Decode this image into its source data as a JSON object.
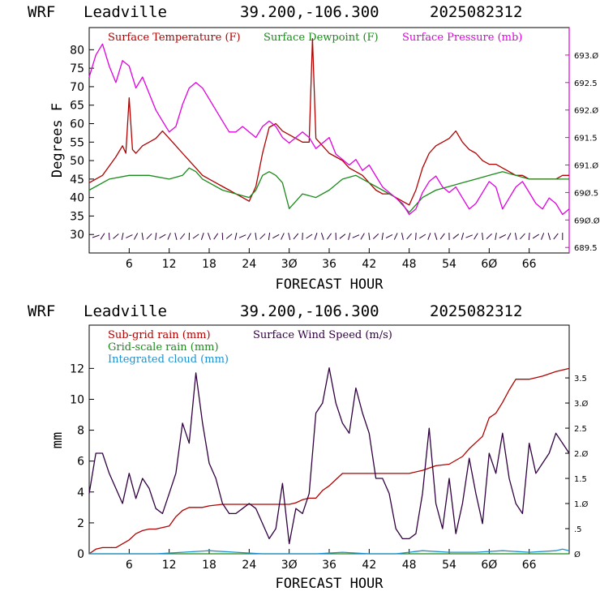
{
  "chart_data": [
    {
      "type": "line",
      "header": {
        "model": "WRF",
        "station": "Leadville",
        "coords": "39.200,-106.300",
        "run": "2025082312"
      },
      "xlabel": "FORECAST HOUR",
      "ylabel": "Degrees F",
      "xlim": [
        0,
        72
      ],
      "xticks": [
        6,
        12,
        18,
        24,
        30,
        36,
        42,
        48,
        54,
        60,
        66
      ],
      "xtick_labels": [
        "6",
        "12",
        "18",
        "24",
        "3Ø",
        "36",
        "42",
        "48",
        "54",
        "6Ø",
        "66"
      ],
      "ylim": [
        25,
        86
      ],
      "yticks": [
        30,
        35,
        40,
        45,
        50,
        55,
        60,
        65,
        70,
        75,
        80
      ],
      "y2lim": [
        689.4,
        693.5
      ],
      "y2ticks": [
        689.5,
        690.0,
        690.5,
        691.0,
        691.5,
        692.0,
        692.5,
        693.0
      ],
      "y2tick_labels": [
        "689.5",
        "69Ø.Ø",
        "69Ø.5",
        "691.Ø",
        "691.5",
        "692.Ø",
        "692.5",
        "693.Ø"
      ],
      "colors": {
        "temperature": "#b00000",
        "dewpoint": "#1a8a1a",
        "pressure": "#e000e0"
      },
      "series": [
        {
          "name": "Surface Temperature (F)",
          "color": "#b00000",
          "axis": "left",
          "x": [
            0,
            2,
            4,
            5,
            5.5,
            6,
            6.5,
            7,
            8,
            9,
            10,
            11,
            12,
            13,
            14,
            15,
            16,
            17,
            18,
            19,
            20,
            21,
            22,
            23,
            24,
            25,
            26,
            27,
            28,
            29,
            30,
            31,
            32,
            33,
            33.5,
            34,
            35,
            36,
            37,
            38,
            39,
            40,
            41,
            42,
            43,
            44,
            45,
            46,
            47,
            48,
            49,
            50,
            51,
            52,
            53,
            54,
            55,
            56,
            57,
            58,
            59,
            60,
            61,
            62,
            63,
            64,
            65,
            66,
            67,
            68,
            69,
            70,
            71,
            72
          ],
          "y": [
            44,
            46,
            51,
            54,
            52,
            67,
            53,
            52,
            54,
            55,
            56,
            58,
            56,
            54,
            52,
            50,
            48,
            46,
            45,
            44,
            43,
            42,
            41,
            40,
            39,
            43,
            52,
            59,
            60,
            58,
            57,
            56,
            55,
            55,
            83,
            56,
            54,
            52,
            51,
            50,
            48,
            47,
            46,
            44,
            42,
            41,
            41,
            40,
            39,
            38,
            42,
            48,
            52,
            54,
            55,
            56,
            58,
            55,
            53,
            52,
            50,
            49,
            49,
            48,
            47,
            46,
            46,
            45,
            45,
            45,
            45,
            45,
            46,
            46
          ]
        },
        {
          "name": "Surface Dewpoint (F)",
          "color": "#1a8a1a",
          "axis": "left",
          "x": [
            0,
            3,
            6,
            9,
            12,
            14,
            15,
            16,
            17,
            18,
            20,
            22,
            24,
            25,
            26,
            27,
            28,
            29,
            30,
            31,
            32,
            34,
            36,
            38,
            40,
            42,
            44,
            46,
            48,
            50,
            52,
            54,
            56,
            58,
            60,
            62,
            64,
            66,
            68,
            70,
            72
          ],
          "y": [
            42,
            45,
            46,
            46,
            45,
            46,
            48,
            47,
            45,
            44,
            42,
            41,
            40,
            42,
            46,
            47,
            46,
            44,
            37,
            39,
            41,
            40,
            42,
            45,
            46,
            44,
            42,
            40,
            36,
            40,
            42,
            43,
            44,
            45,
            46,
            47,
            46,
            45,
            45,
            45,
            45
          ]
        },
        {
          "name": "Surface Pressure (mb)",
          "color": "#e000e0",
          "axis": "right",
          "x": [
            0,
            1,
            2,
            3,
            4,
            5,
            6,
            7,
            8,
            9,
            10,
            11,
            12,
            13,
            14,
            15,
            16,
            17,
            18,
            19,
            20,
            21,
            22,
            23,
            24,
            25,
            26,
            27,
            28,
            29,
            30,
            31,
            32,
            33,
            34,
            35,
            36,
            37,
            38,
            39,
            40,
            41,
            42,
            43,
            44,
            45,
            46,
            47,
            48,
            49,
            50,
            51,
            52,
            53,
            54,
            55,
            56,
            57,
            58,
            59,
            60,
            61,
            62,
            63,
            64,
            65,
            66,
            67,
            68,
            69,
            70,
            71,
            72
          ],
          "y": [
            692.6,
            693.0,
            693.2,
            692.8,
            692.5,
            692.9,
            692.8,
            692.4,
            692.6,
            692.3,
            692.0,
            691.8,
            691.6,
            691.7,
            692.1,
            692.4,
            692.5,
            692.4,
            692.2,
            692.0,
            691.8,
            691.6,
            691.6,
            691.7,
            691.6,
            691.5,
            691.7,
            691.8,
            691.7,
            691.5,
            691.4,
            691.5,
            691.6,
            691.5,
            691.3,
            691.4,
            691.5,
            691.2,
            691.1,
            691.0,
            691.1,
            690.9,
            691.0,
            690.8,
            690.6,
            690.5,
            690.4,
            690.3,
            690.1,
            690.2,
            690.5,
            690.7,
            690.8,
            690.6,
            690.5,
            690.6,
            690.4,
            690.2,
            690.3,
            690.5,
            690.7,
            690.6,
            690.2,
            690.4,
            690.6,
            690.7,
            690.5,
            690.3,
            690.2,
            690.4,
            690.3,
            690.1,
            690.2
          ]
        }
      ],
      "wind_barbs": {
        "y": 29.5,
        "hours": [
          1,
          2,
          3,
          4,
          5,
          6,
          7,
          8,
          9,
          10,
          11,
          12,
          13,
          14,
          15,
          16,
          17,
          18,
          19,
          20,
          21,
          22,
          23,
          24,
          25,
          26,
          27,
          28,
          29,
          30,
          31,
          32,
          33,
          34,
          35,
          36,
          37,
          38,
          39,
          40,
          41,
          42,
          43,
          44,
          45,
          46,
          47,
          48,
          49,
          50,
          51,
          52,
          53,
          54,
          55,
          56,
          57,
          58,
          59,
          60,
          61,
          62,
          63,
          64,
          65,
          66,
          67,
          68,
          69,
          70,
          71
        ]
      }
    },
    {
      "type": "line",
      "header": {
        "model": "WRF",
        "station": "Leadville",
        "coords": "39.200,-106.300",
        "run": "2025082312"
      },
      "xlabel": "FORECAST HOUR",
      "ylabel": "mm",
      "xlim": [
        0,
        72
      ],
      "xticks": [
        6,
        12,
        18,
        24,
        30,
        36,
        42,
        48,
        54,
        60,
        66
      ],
      "xtick_labels": [
        "6",
        "12",
        "18",
        "24",
        "3Ø",
        "36",
        "42",
        "48",
        "54",
        "6Ø",
        "66"
      ],
      "ylim": [
        0,
        14.8
      ],
      "yticks": [
        0,
        2,
        4,
        6,
        8,
        10,
        12
      ],
      "y2lim": [
        0,
        4.55
      ],
      "y2ticks": [
        0,
        0.5,
        1.0,
        1.5,
        2.0,
        2.5,
        3.0,
        3.5
      ],
      "y2tick_labels": [
        "Ø",
        ".5",
        "1.Ø",
        "1.5",
        "2.Ø",
        "2.5",
        "3.Ø",
        "3.5"
      ],
      "colors": {
        "subgrid": "#b00000",
        "gridscale": "#1a8a1a",
        "cloud": "#1e90d0",
        "wind": "#300040"
      },
      "series": [
        {
          "name": "Sub-grid rain (mm)",
          "color": "#b00000",
          "axis": "left",
          "x": [
            0,
            1,
            2,
            4,
            6,
            7,
            8,
            9,
            10,
            11,
            12,
            13,
            14,
            15,
            16,
            17,
            18,
            20,
            24,
            28,
            30,
            31,
            32,
            33,
            34,
            35,
            36,
            37,
            38,
            42,
            46,
            48,
            50,
            52,
            54,
            56,
            57,
            58,
            59,
            60,
            61,
            62,
            63,
            64,
            66,
            68,
            70,
            72
          ],
          "y": [
            0,
            0.3,
            0.4,
            0.4,
            0.9,
            1.3,
            1.5,
            1.6,
            1.6,
            1.7,
            1.8,
            2.4,
            2.8,
            3.0,
            3.0,
            3.0,
            3.1,
            3.2,
            3.2,
            3.2,
            3.2,
            3.3,
            3.5,
            3.6,
            3.6,
            4.1,
            4.4,
            4.8,
            5.2,
            5.2,
            5.2,
            5.2,
            5.4,
            5.7,
            5.8,
            6.3,
            6.8,
            7.2,
            7.6,
            8.8,
            9.1,
            9.8,
            10.6,
            11.3,
            11.3,
            11.5,
            11.8,
            12.0
          ]
        },
        {
          "name": "Grid-scale rain (mm)",
          "color": "#1a8a1a",
          "axis": "left",
          "x": [
            0,
            72
          ],
          "y": [
            0,
            0
          ]
        },
        {
          "name": "Integrated cloud (mm)",
          "color": "#1e90d0",
          "axis": "left",
          "x": [
            0,
            10,
            14,
            18,
            22,
            26,
            30,
            34,
            38,
            42,
            46,
            50,
            54,
            58,
            62,
            66,
            70,
            71,
            72
          ],
          "y": [
            0,
            0,
            0.1,
            0.2,
            0.1,
            0,
            0,
            0,
            0.1,
            0,
            0,
            0.2,
            0.1,
            0.1,
            0.2,
            0.1,
            0.2,
            0.3,
            0.2
          ]
        },
        {
          "name": "Surface Wind Speed (m/s)",
          "color": "#300040",
          "axis": "right",
          "x": [
            0,
            1,
            2,
            3,
            4,
            5,
            6,
            7,
            8,
            9,
            10,
            11,
            12,
            13,
            14,
            15,
            16,
            17,
            18,
            19,
            20,
            21,
            22,
            23,
            24,
            25,
            26,
            27,
            28,
            29,
            30,
            31,
            32,
            33,
            34,
            35,
            36,
            37,
            38,
            39,
            40,
            41,
            42,
            43,
            44,
            45,
            46,
            47,
            48,
            49,
            50,
            51,
            52,
            53,
            54,
            55,
            56,
            57,
            58,
            59,
            60,
            61,
            62,
            63,
            64,
            65,
            66,
            67,
            68,
            69,
            70,
            71,
            72
          ],
          "y": [
            1.2,
            2.0,
            2.0,
            1.6,
            1.3,
            1.0,
            1.6,
            1.1,
            1.5,
            1.3,
            0.9,
            0.8,
            1.2,
            1.6,
            2.6,
            2.2,
            3.6,
            2.6,
            1.8,
            1.5,
            1.0,
            0.8,
            0.8,
            0.9,
            1.0,
            0.9,
            0.6,
            0.3,
            0.5,
            1.4,
            0.2,
            0.9,
            0.8,
            1.2,
            2.8,
            3.0,
            3.7,
            3.0,
            2.6,
            2.4,
            3.3,
            2.8,
            2.4,
            1.5,
            1.5,
            1.2,
            0.5,
            0.3,
            0.3,
            0.4,
            1.2,
            2.5,
            1.0,
            0.5,
            1.5,
            0.4,
            1.0,
            1.9,
            1.2,
            0.6,
            2.0,
            1.6,
            2.4,
            1.5,
            1.0,
            0.8,
            2.2,
            1.6,
            1.8,
            2.0,
            2.4,
            2.2,
            2.0
          ]
        }
      ]
    }
  ]
}
